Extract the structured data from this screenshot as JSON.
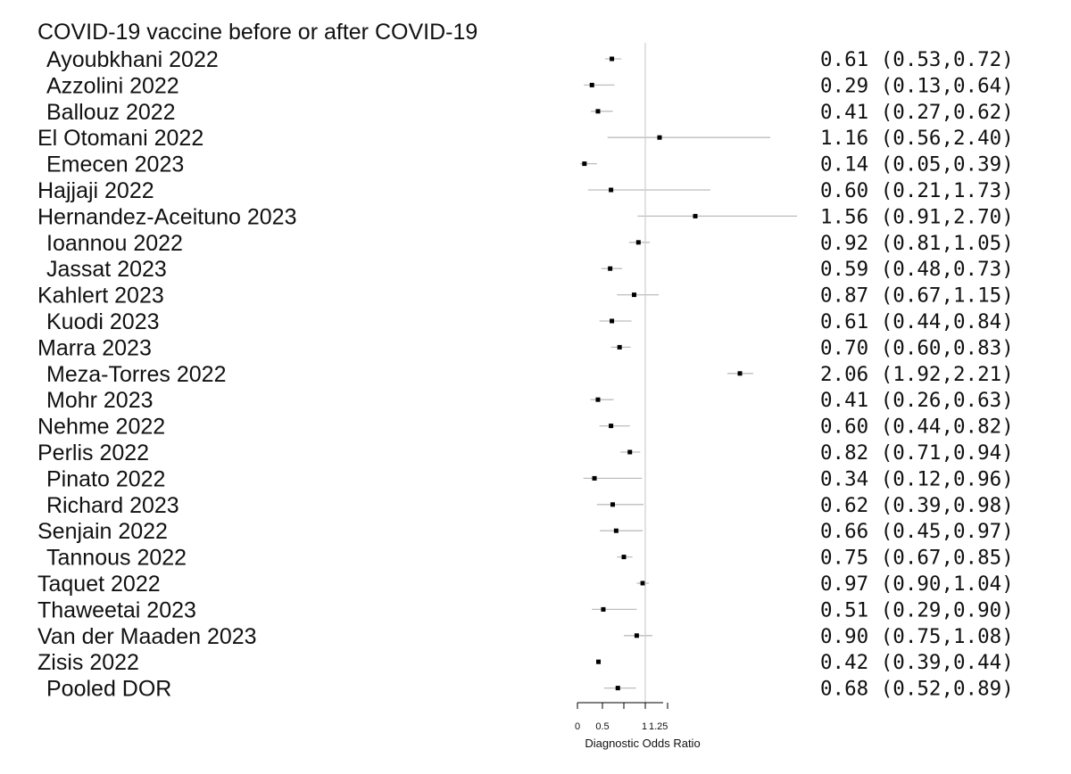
{
  "chart_data": {
    "type": "forest",
    "title": "COVID-19 vaccine before or after COVID-19",
    "xlabel": "Diagnostic Odds Ratio",
    "x_ticks": [
      "0",
      "0.5",
      "1",
      "1.25"
    ],
    "reference_line": 1,
    "xlim": [
      0,
      2.06
    ],
    "rows": [
      {
        "label": "Ayoubkhani 2022",
        "estimate": 0.61,
        "lower": 0.53,
        "upper": 0.72,
        "text": "0.61 (0.53,0.72)"
      },
      {
        "label": "Azzolini 2022",
        "estimate": 0.29,
        "lower": 0.13,
        "upper": 0.64,
        "text": "0.29 (0.13,0.64)"
      },
      {
        "label": "Ballouz 2022",
        "estimate": 0.41,
        "lower": 0.27,
        "upper": 0.62,
        "text": "0.41 (0.27,0.62)"
      },
      {
        "label": "El Otomani 2022",
        "estimate": 1.16,
        "lower": 0.56,
        "upper": 2.4,
        "text": "1.16 (0.56,2.40)"
      },
      {
        "label": "Emecen 2023",
        "estimate": 0.14,
        "lower": 0.05,
        "upper": 0.39,
        "text": "0.14 (0.05,0.39)"
      },
      {
        "label": "Hajjaji 2022",
        "estimate": 0.6,
        "lower": 0.21,
        "upper": 1.73,
        "text": "0.60 (0.21,1.73)"
      },
      {
        "label": "Hernandez-Aceituno 2023",
        "estimate": 1.56,
        "lower": 0.91,
        "upper": 2.7,
        "text": "1.56 (0.91,2.70)"
      },
      {
        "label": "Ioannou 2022",
        "estimate": 0.92,
        "lower": 0.81,
        "upper": 1.05,
        "text": "0.92 (0.81,1.05)"
      },
      {
        "label": "Jassat 2023",
        "estimate": 0.59,
        "lower": 0.48,
        "upper": 0.73,
        "text": "0.59 (0.48,0.73)"
      },
      {
        "label": "Kahlert 2023",
        "estimate": 0.87,
        "lower": 0.67,
        "upper": 1.15,
        "text": "0.87 (0.67,1.15)"
      },
      {
        "label": "Kuodi 2023",
        "estimate": 0.61,
        "lower": 0.44,
        "upper": 0.84,
        "text": "0.61 (0.44,0.84)"
      },
      {
        "label": "Marra 2023",
        "estimate": 0.7,
        "lower": 0.6,
        "upper": 0.83,
        "text": "0.70 (0.60,0.83)"
      },
      {
        "label": "Meza-Torres 2022",
        "estimate": 2.06,
        "lower": 1.92,
        "upper": 2.21,
        "text": "2.06 (1.92,2.21)"
      },
      {
        "label": "Mohr 2023",
        "estimate": 0.41,
        "lower": 0.26,
        "upper": 0.63,
        "text": "0.41 (0.26,0.63)"
      },
      {
        "label": "Nehme 2022",
        "estimate": 0.6,
        "lower": 0.44,
        "upper": 0.82,
        "text": "0.60 (0.44,0.82)"
      },
      {
        "label": "Perlis 2022",
        "estimate": 0.82,
        "lower": 0.71,
        "upper": 0.94,
        "text": "0.82 (0.71,0.94)"
      },
      {
        "label": "Pinato 2022",
        "estimate": 0.34,
        "lower": 0.12,
        "upper": 0.96,
        "text": "0.34 (0.12,0.96)"
      },
      {
        "label": "Richard 2023",
        "estimate": 0.62,
        "lower": 0.39,
        "upper": 0.98,
        "text": "0.62 (0.39,0.98)"
      },
      {
        "label": "Senjain 2022",
        "estimate": 0.66,
        "lower": 0.45,
        "upper": 0.97,
        "text": "0.66 (0.45,0.97)"
      },
      {
        "label": "Tannous 2022",
        "estimate": 0.75,
        "lower": 0.67,
        "upper": 0.85,
        "text": "0.75 (0.67,0.85)"
      },
      {
        "label": "Taquet 2022",
        "estimate": 0.97,
        "lower": 0.9,
        "upper": 1.04,
        "text": "0.97 (0.90,1.04)"
      },
      {
        "label": "Thaweetai 2023",
        "estimate": 0.51,
        "lower": 0.29,
        "upper": 0.9,
        "text": "0.51 (0.29,0.90)"
      },
      {
        "label": "Van der Maaden 2023",
        "estimate": 0.9,
        "lower": 0.75,
        "upper": 1.08,
        "text": "0.90 (0.75,1.08)"
      },
      {
        "label": "Zisis 2022",
        "estimate": 0.42,
        "lower": 0.39,
        "upper": 0.44,
        "text": "0.42 (0.39,0.44)"
      },
      {
        "label": "Pooled DOR",
        "estimate": 0.68,
        "lower": 0.52,
        "upper": 0.89,
        "text": "0.68 (0.52,0.89)"
      }
    ]
  }
}
